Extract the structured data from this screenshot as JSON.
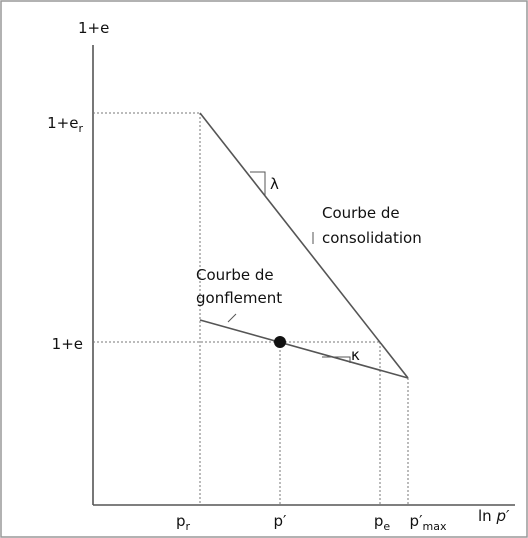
{
  "axes": {
    "y_title": "1+e",
    "x_title": {
      "prefix": "ln ",
      "var": "p′"
    }
  },
  "y_labels": [
    {
      "base": "1+e",
      "sub": "r"
    },
    {
      "base": "1+e"
    }
  ],
  "x_labels": [
    {
      "base": "p",
      "sub": "r"
    },
    {
      "base": "p′"
    },
    {
      "base": "p",
      "sub": "e"
    },
    {
      "base": "p′",
      "sub": "max"
    }
  ],
  "curves": [
    {
      "label": [
        "Courbe de",
        "consolidation"
      ],
      "slope": "λ"
    },
    {
      "label": [
        "Courbe de",
        "gonflement"
      ],
      "slope": "κ"
    }
  ]
}
